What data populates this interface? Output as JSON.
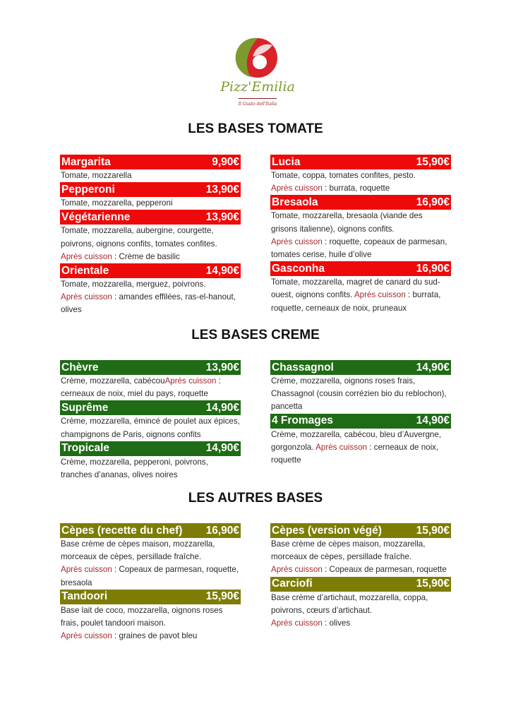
{
  "logo": {
    "name": "Pizz'Emilia",
    "tagline": "Il Gusto dell'Italia",
    "colors": {
      "green": "#7c9a2e",
      "red": "#d8232a"
    }
  },
  "colors": {
    "tomate": "#ee0a0a",
    "creme": "#1f6b16",
    "autres": "#7d7d05",
    "apres_cuisson": "#a8282e"
  },
  "after_label": "Après cuisson",
  "sections": [
    {
      "title": "LES BASES TOMATE",
      "left": [
        {
          "name": "Margarita",
          "price": "9,90€",
          "desc": "Tomate, mozzarella"
        },
        {
          "name": "Pepperoni",
          "price": "13,90€",
          "desc": "Tomate, mozzarella, pepperoni"
        },
        {
          "name": "Végétarienne",
          "price": "13,90€",
          "desc": "Tomate, mozzarella, aubergine, courgette, poivrons, oignons confits, tomates confites.",
          "after_newline": true,
          "after": " :  Crème de basilic"
        },
        {
          "name": "Orientale",
          "price": "14,90€",
          "desc": "Tomate, mozzarella, merguez, poivrons.",
          "after_newline": true,
          "after": " : amandes effilées, ras-el-hanout, olives"
        }
      ],
      "right": [
        {
          "name": "Lucia",
          "price": "15,90€",
          "desc": "Tomate, coppa, tomates confites, pesto.",
          "after_newline": true,
          "after": " : burrata, roquette"
        },
        {
          "name": "Bresaola",
          "price": "16,90€",
          "desc": "Tomate, mozzarella, bresaola (viande des grisons italienne), oignons confits.",
          "after_newline": true,
          "after": " : roquette, copeaux de parmesan, tomates cerise, huile d’olive"
        },
        {
          "name": "Gasconha",
          "price": "16,90€",
          "desc": "Tomate, mozzarella, magret de canard du sud-ouest, oignons confits. ",
          "after": " : burrata, roquette, cerneaux de noix, pruneaux"
        }
      ]
    },
    {
      "title": "LES BASES CREME",
      "left": [
        {
          "name": "Chèvre",
          "price": "13,90€",
          "desc": "Crème, mozzarella, cabécou",
          "after": " : cerneaux de noix, miel du pays, roquette"
        },
        {
          "name": "Suprême",
          "price": "14,90€",
          "desc": "Crème, mozzarella, émincé de poulet aux épices, champignons de Paris, oignons confits"
        },
        {
          "name": "Tropicale",
          "price": "14,90€",
          "desc": "Crème, mozzarella, pepperoni, poivrons, tranches d’ananas, olives noires"
        }
      ],
      "right": [
        {
          "name": "Chassagnol",
          "price": "14,90€",
          "desc": "Crème, mozzarella, oignons roses frais, Chassagnol (cousin corrézien bio du reblochon), pancetta"
        },
        {
          "name": "4 Fromages",
          "price": "14,90€",
          "desc": "Crème, mozzarella, cabécou, bleu d’Auvergne, gorgonzola. ",
          "after": " : cerneaux de noix, roquette"
        }
      ]
    },
    {
      "title": "LES AUTRES BASES",
      "left": [
        {
          "name": "Cèpes (recette du chef)",
          "price": "16,90€",
          "desc": "Base crème de cèpes maison, mozzarella, morceaux de cèpes, persillade fraîche.",
          "after_newline": true,
          "after": " : Copeaux de parmesan, roquette, bresaola"
        },
        {
          "name": "Tandoori",
          "price": "15,90€",
          "desc": "Base lait de coco, mozzarella, oignons roses frais, poulet tandoori maison.",
          "after_newline": true,
          "after": " : graines de pavot bleu"
        }
      ],
      "right": [
        {
          "name": "Cèpes (version végé)",
          "price": "15,90€",
          "desc": "Base crème de cèpes maison, mozzarella, morceaux de cèpes, persillade fraîche.",
          "after_newline": true,
          "after": " : Copeaux de parmesan, roquette"
        },
        {
          "name": "Carciofi",
          "price": "15,90€",
          "desc": "Base crème d’artichaut, mozzarella, coppa, poivrons, cœurs d’artichaut.",
          "after_newline": true,
          "after": " : olives"
        }
      ]
    }
  ]
}
